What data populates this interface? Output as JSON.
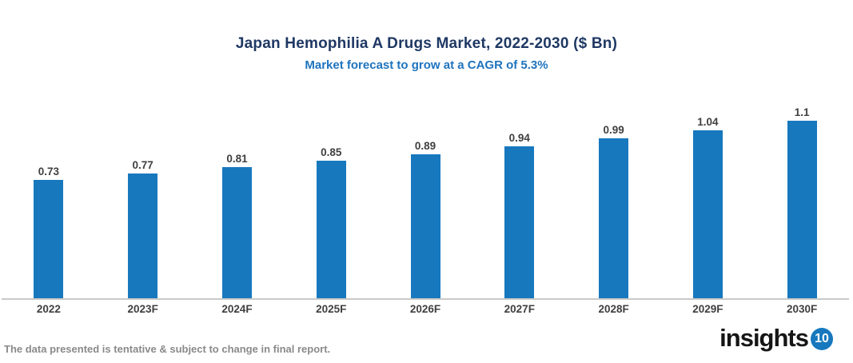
{
  "header": {
    "title": "Japan Hemophilia A Drugs Market, 2022-2030 ($ Bn)",
    "subtitle": "Market forecast to grow at a CAGR of 5.3%"
  },
  "chart_data": {
    "type": "bar",
    "categories": [
      "2022",
      "2023F",
      "2024F",
      "2025F",
      "2026F",
      "2027F",
      "2028F",
      "2029F",
      "2030F"
    ],
    "values": [
      0.73,
      0.77,
      0.81,
      0.85,
      0.89,
      0.94,
      0.99,
      1.04,
      1.1
    ],
    "title": "Japan Hemophilia A Drugs Market, 2022-2030 ($ Bn)",
    "subtitle": "Market forecast to grow at a CAGR of 5.3%",
    "xlabel": "",
    "ylabel": "",
    "ylim": [
      0,
      1.41
    ],
    "grid": false,
    "legend": "none",
    "value_labels_shown": true
  },
  "colors": {
    "bar": "#1778BE",
    "title": "#1F3864",
    "subtitle": "#1E73BE",
    "axis_line": "#C9C9C9",
    "data_labels": "#3F3F3F",
    "footer_text": "#8A8A8A",
    "logo_badge": "#1778BE"
  },
  "footer": {
    "disclaimer": "The data presented is tentative & subject to change in final report.",
    "brand_text": "insights",
    "brand_badge": "10"
  }
}
